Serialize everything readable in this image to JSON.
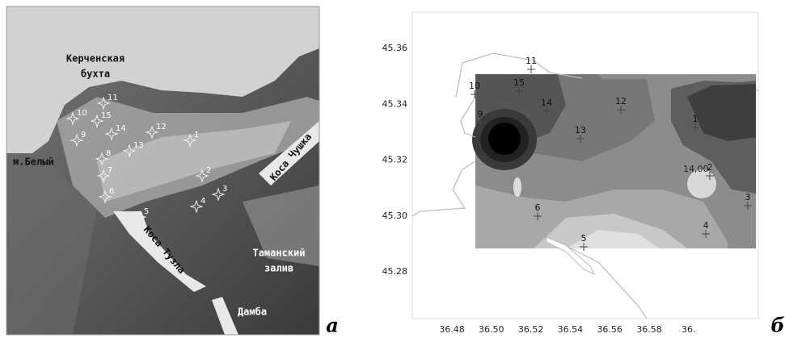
{
  "panel_a": {
    "labels": {
      "bay_line1": "Керченская",
      "bay_line2": "бухта",
      "cape": "м.Белый",
      "spit_chushka": "Коса Чушка",
      "gulf_line1": "Таманский",
      "gulf_line2": "залив",
      "spit_tuzla": "Коса Тузла",
      "dam": "Дамба"
    },
    "stations": [
      "1",
      "2",
      "3",
      "4",
      "5",
      "6",
      "7",
      "8",
      "9",
      "10",
      "11",
      "12",
      "13",
      "14",
      "15"
    ],
    "panel_label": "а"
  },
  "panel_b": {
    "yticks": [
      "45.36",
      "45.34",
      "45.32",
      "45.30",
      "45.28"
    ],
    "xticks": [
      "36.48",
      "36.50",
      "36.52",
      "36.54",
      "36.56",
      "36.58",
      "36."
    ],
    "stations": [
      "1",
      "2",
      "3",
      "4",
      "5",
      "6",
      "9",
      "10",
      "11",
      "12",
      "13",
      "14",
      "15"
    ],
    "contour_label": "14,00",
    "panel_label": "б"
  }
}
